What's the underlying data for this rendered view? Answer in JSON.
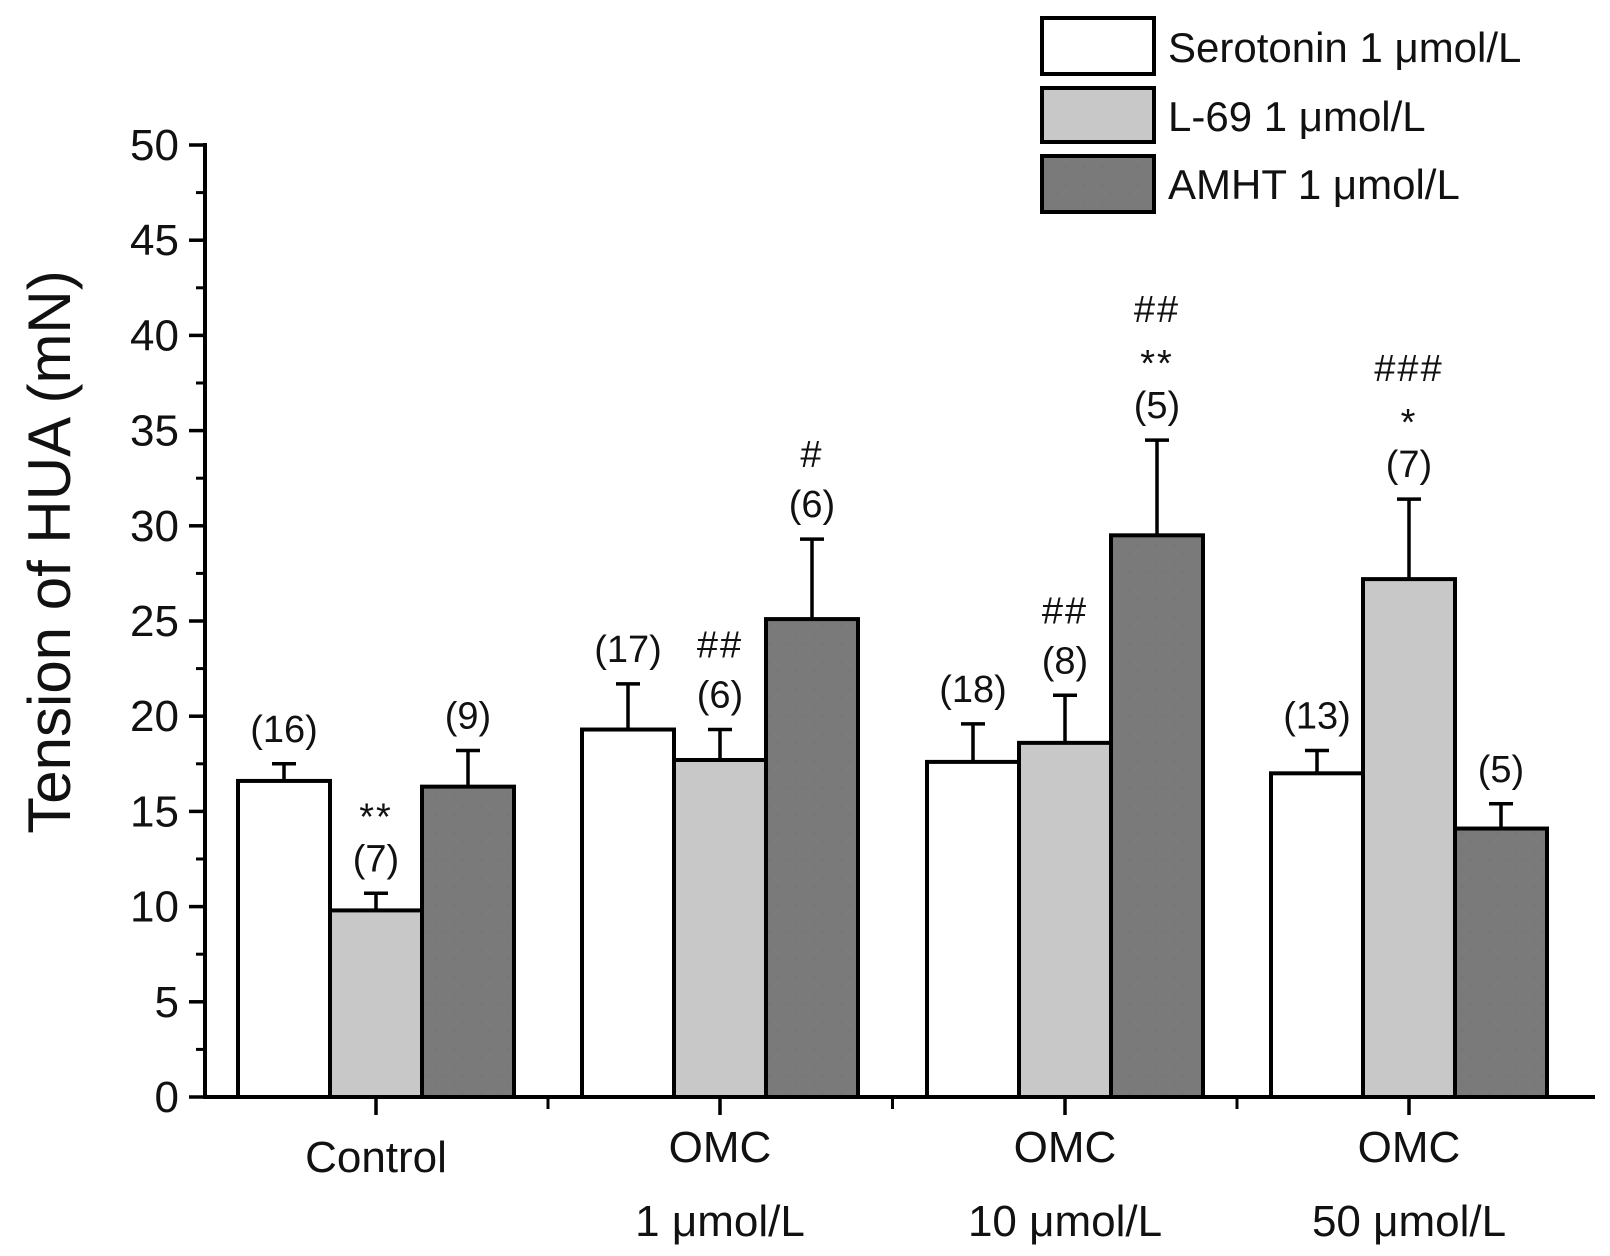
{
  "chart_data": {
    "type": "bar",
    "title": "",
    "xlabel": "",
    "ylabel": "Tension of HUA (mN)",
    "ylim": [
      0,
      50
    ],
    "yticks": [
      0,
      5,
      10,
      15,
      20,
      25,
      30,
      35,
      40,
      45,
      50
    ],
    "categories": [
      {
        "line1": "Control",
        "line2": ""
      },
      {
        "line1": "OMC",
        "line2": "1 μmol/L"
      },
      {
        "line1": "OMC",
        "line2": "10 μmol/L"
      },
      {
        "line1": "OMC",
        "line2": "50 μmol/L"
      }
    ],
    "legend_position": "top-right",
    "series": [
      {
        "name": "Serotonin 1 μmol/L",
        "color": "#ffffff",
        "values": [
          16.6,
          19.3,
          17.6,
          17.0
        ],
        "errors": [
          0.9,
          2.4,
          2.0,
          1.2
        ],
        "n_labels": [
          "(16)",
          "(17)",
          "(18)",
          "(13)"
        ],
        "sig_labels": [
          [],
          [],
          [],
          []
        ]
      },
      {
        "name": "L-69 1 μmol/L",
        "color": "#c8c8c8",
        "values": [
          9.8,
          17.7,
          18.6,
          27.2
        ],
        "errors": [
          0.9,
          1.6,
          2.5,
          4.2
        ],
        "n_labels": [
          "(7)",
          "(6)",
          "(8)",
          "(7)"
        ],
        "sig_labels": [
          [
            "**"
          ],
          [
            "##"
          ],
          [
            "##"
          ],
          [
            "###",
            "*"
          ]
        ]
      },
      {
        "name": "AMHT 1 μmol/L",
        "color": "#7a7a7a",
        "values": [
          16.3,
          25.1,
          29.5,
          14.1
        ],
        "errors": [
          1.9,
          4.2,
          5.0,
          1.3
        ],
        "n_labels": [
          "(9)",
          "(6)",
          "(5)",
          "(5)"
        ],
        "sig_labels": [
          [],
          [
            "#"
          ],
          [
            "##",
            "**"
          ],
          []
        ]
      }
    ]
  }
}
